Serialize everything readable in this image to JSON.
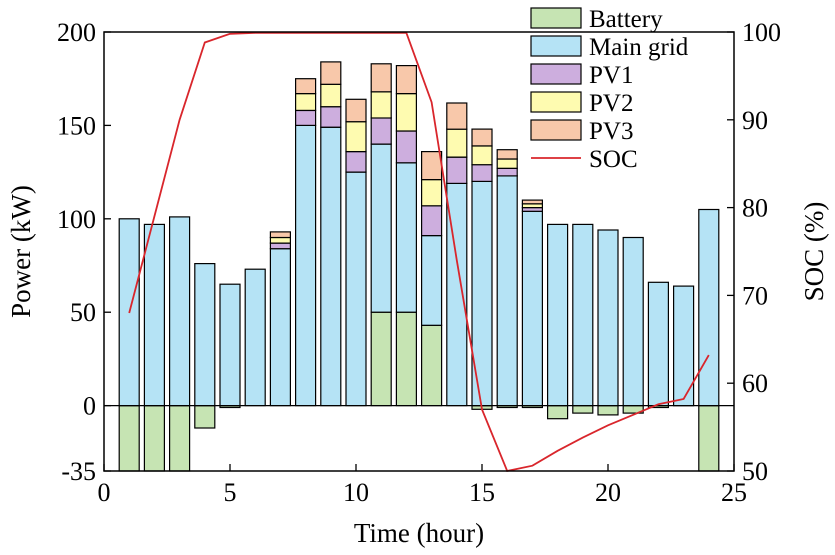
{
  "chart_data": {
    "type": "bar",
    "title": "",
    "xlabel": "Time (hour)",
    "ylabel": "Power (kW)",
    "y2label": "SOC (%)",
    "xlim": [
      0,
      25
    ],
    "ylim": [
      -35,
      200
    ],
    "y2lim": [
      50,
      100
    ],
    "xticks": [
      "0",
      "5",
      "10",
      "15",
      "20",
      "25"
    ],
    "yticks": [
      "-35",
      "0",
      "50",
      "100",
      "150",
      "200"
    ],
    "y2ticks": [
      "50",
      "60",
      "70",
      "80",
      "90",
      "100"
    ],
    "grid": false,
    "legend_position": "top-right",
    "stacked": true,
    "categories": [
      1,
      2,
      3,
      4,
      5,
      6,
      7,
      8,
      9,
      10,
      11,
      12,
      13,
      14,
      15,
      16,
      17,
      18,
      19,
      20,
      21,
      22,
      23,
      24
    ],
    "series": [
      {
        "name": "Battery",
        "color": "#c6e4b3",
        "values": [
          -35,
          -35,
          -35,
          -12,
          -1,
          0,
          0,
          0,
          0,
          0,
          50,
          50,
          43,
          0,
          -2,
          -1,
          -1,
          -7,
          -4,
          -5,
          -4,
          -1,
          0,
          -35
        ]
      },
      {
        "name": "Main grid",
        "color": "#b5e3f5",
        "values": [
          100,
          97,
          101,
          76,
          65,
          73,
          84,
          150,
          149,
          125,
          90,
          80,
          48,
          119,
          120,
          123,
          104,
          97,
          97,
          94,
          90,
          66,
          64,
          105
        ]
      },
      {
        "name": "PV1",
        "color": "#cdaede",
        "values": [
          0,
          0,
          0,
          0,
          0,
          0,
          3,
          8,
          11,
          11,
          14,
          17,
          16,
          14,
          9,
          4,
          2,
          0,
          0,
          0,
          0,
          0,
          0,
          0
        ]
      },
      {
        "name": "PV2",
        "color": "#fefbb0",
        "values": [
          0,
          0,
          0,
          0,
          0,
          0,
          3,
          9,
          12,
          16,
          14,
          20,
          14,
          15,
          10,
          5,
          2,
          0,
          0,
          0,
          0,
          0,
          0,
          0
        ]
      },
      {
        "name": "PV3",
        "color": "#f8c8aa",
        "values": [
          0,
          0,
          0,
          0,
          0,
          0,
          3,
          8,
          12,
          12,
          15,
          15,
          15,
          14,
          9,
          5,
          2,
          0,
          0,
          0,
          0,
          0,
          0,
          0
        ]
      }
    ],
    "soc": {
      "name": "SOC",
      "color": "#d9262c",
      "x": [
        1,
        2,
        3,
        4,
        5,
        6,
        7,
        8,
        9,
        10,
        11,
        12,
        13,
        14,
        15,
        16,
        17,
        18,
        19,
        20,
        21,
        22,
        23,
        24
      ],
      "values": [
        68,
        79,
        90,
        98.8,
        99.8,
        99.9,
        99.9,
        99.9,
        99.9,
        99.9,
        99.9,
        99.9,
        92,
        74,
        57,
        50,
        50.6,
        52.3,
        53.8,
        55.2,
        56.4,
        57.6,
        58.2,
        63.2
      ]
    }
  }
}
